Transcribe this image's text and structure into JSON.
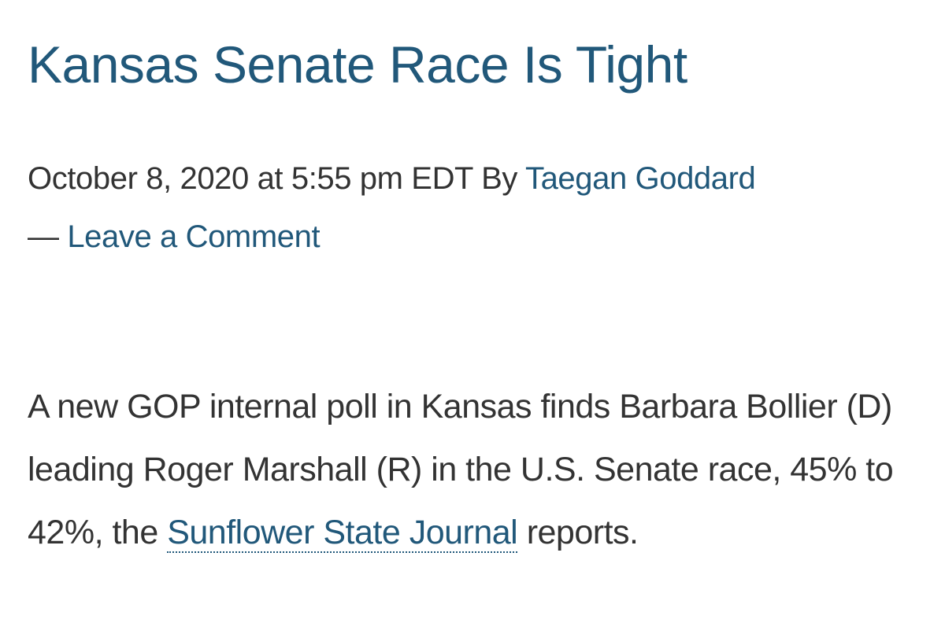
{
  "header": {
    "title": "Kansas Senate Race Is Tight"
  },
  "meta": {
    "date": "October 8, 2020 at 5:55 pm EDT",
    "by": "By",
    "author": "Taegan Goddard",
    "separator": "—",
    "comments": "Leave a Comment"
  },
  "body": {
    "text_before": "A new GOP internal poll in Kansas finds Barbara Bollier (D) leading Roger Marshall (R) in the U.S. Senate race, 45% to 42%, the",
    "link": "Sunflower State Journal",
    "text_after": "reports."
  }
}
